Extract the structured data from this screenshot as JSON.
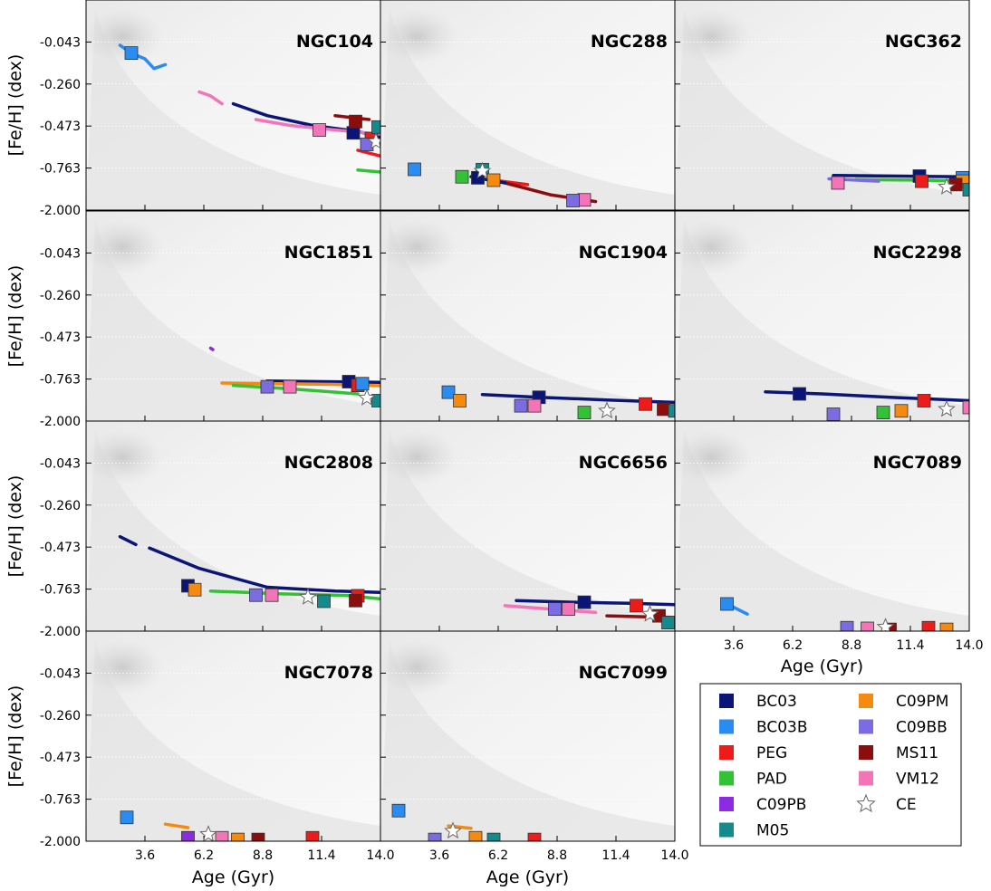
{
  "chart_data": {
    "type": "scatter",
    "description_kind": "small-multiples contour/marker panels of age vs metallicity",
    "xlabel": "Age (Gyr)",
    "ylabel": "[Fe/H] (dex)",
    "x_ticks": [
      "3.6",
      "6.2",
      "8.8",
      "11.4",
      "14.0"
    ],
    "y_ticks": [
      "-0.043",
      "-0.260",
      "-0.473",
      "-0.763",
      "-2.000"
    ],
    "xlim": [
      1.0,
      14.0
    ],
    "y_tick_values": [
      -0.043,
      -0.26,
      -0.473,
      -0.763,
      -2.0
    ],
    "grid": true,
    "legend_position": "lower-right",
    "series": [
      {
        "name": "BC03",
        "color": "#0b1577",
        "marker": "square"
      },
      {
        "name": "BC03B",
        "color": "#2a8bf0",
        "marker": "square"
      },
      {
        "name": "PEG",
        "color": "#ee1b1b",
        "marker": "square"
      },
      {
        "name": "PAD",
        "color": "#33c136",
        "marker": "square"
      },
      {
        "name": "C09PB",
        "color": "#8b2be2",
        "marker": "square"
      },
      {
        "name": "M05",
        "color": "#148a8c",
        "marker": "square"
      },
      {
        "name": "C09PM",
        "color": "#f58a10",
        "marker": "square"
      },
      {
        "name": "C09BB",
        "color": "#7b6ce2",
        "marker": "square"
      },
      {
        "name": "MS11",
        "color": "#8b0d0d",
        "marker": "square"
      },
      {
        "name": "VM12",
        "color": "#f474b8",
        "marker": "square"
      },
      {
        "name": "CE",
        "color": "#ffffff",
        "marker": "star"
      }
    ],
    "panels": [
      {
        "name": "NGC104",
        "points": [
          {
            "s": "BC03B",
            "x": 3.0,
            "y": -0.1
          },
          {
            "s": "BC03",
            "x": 12.8,
            "y": -0.52
          },
          {
            "s": "MS11",
            "x": 12.9,
            "y": -0.45
          },
          {
            "s": "VM12",
            "x": 11.3,
            "y": -0.5
          },
          {
            "s": "PEG",
            "x": 13.6,
            "y": -0.56
          },
          {
            "s": "C09BB",
            "x": 13.4,
            "y": -0.6
          },
          {
            "s": "M05",
            "x": 13.9,
            "y": -0.48
          },
          {
            "s": "CE",
            "x": 13.8,
            "y": -0.58
          }
        ],
        "tracks": [
          {
            "s": "BC03B",
            "x": [
              2.5,
              3.0,
              3.6,
              4.0,
              4.5
            ],
            "y": [
              -0.06,
              -0.1,
              -0.13,
              -0.18,
              -0.16
            ]
          },
          {
            "s": "VM12",
            "x": [
              6.0,
              6.5,
              7.0
            ],
            "y": [
              -0.3,
              -0.32,
              -0.36
            ]
          },
          {
            "s": "BC03",
            "x": [
              7.5,
              9.0,
              11.0,
              13.0,
              14.0
            ],
            "y": [
              -0.36,
              -0.42,
              -0.47,
              -0.51,
              -0.55
            ]
          },
          {
            "s": "VM12",
            "x": [
              8.5,
              10,
              12,
              14
            ],
            "y": [
              -0.44,
              -0.47,
              -0.5,
              -0.53
            ]
          },
          {
            "s": "PAD",
            "x": [
              13.0,
              14.0
            ],
            "y": [
              -0.82,
              -0.88
            ]
          },
          {
            "s": "PEG",
            "x": [
              13.0,
              14.0
            ],
            "y": [
              -0.64,
              -0.68
            ]
          },
          {
            "s": "MS11",
            "x": [
              12.0,
              13.5
            ],
            "y": [
              -0.42,
              -0.44
            ]
          }
        ]
      },
      {
        "name": "NGC288",
        "points": [
          {
            "s": "BC03B",
            "x": 2.5,
            "y": -0.8
          },
          {
            "s": "M05",
            "x": 5.5,
            "y": -0.81
          },
          {
            "s": "PAD",
            "x": 4.6,
            "y": -1.02
          },
          {
            "s": "BC03",
            "x": 5.3,
            "y": -1.05
          },
          {
            "s": "C09PM",
            "x": 6.0,
            "y": -1.12
          },
          {
            "s": "VM12",
            "x": 10.0,
            "y": -1.7
          },
          {
            "s": "C09BB",
            "x": 9.5,
            "y": -1.72
          },
          {
            "s": "CE",
            "x": 5.5,
            "y": -0.85
          }
        ],
        "tracks": [
          {
            "s": "PEG",
            "x": [
              6.0,
              7.5
            ],
            "y": [
              -1.12,
              -1.25
            ]
          },
          {
            "s": "MS11",
            "x": [
              6.5,
              8.5,
              10.5
            ],
            "y": [
              -1.2,
              -1.55,
              -1.75
            ]
          },
          {
            "s": "BC03",
            "x": [
              5.0,
              6.5
            ],
            "y": [
              -1.02,
              -1.2
            ]
          }
        ]
      },
      {
        "name": "NGC362",
        "points": [
          {
            "s": "BC03",
            "x": 11.8,
            "y": -1.0
          },
          {
            "s": "BC03B",
            "x": 13.7,
            "y": -1.05
          },
          {
            "s": "PEG",
            "x": 11.9,
            "y": -1.15
          },
          {
            "s": "C09PM",
            "x": 13.7,
            "y": -1.15
          },
          {
            "s": "VM12",
            "x": 8.2,
            "y": -1.2
          },
          {
            "s": "MS11",
            "x": 13.4,
            "y": -1.25
          },
          {
            "s": "M05",
            "x": 14.0,
            "y": -1.4
          },
          {
            "s": "CE",
            "x": 13.0,
            "y": -1.32
          }
        ],
        "tracks": [
          {
            "s": "BC03",
            "x": [
              8.0,
              11.0,
              14.0
            ],
            "y": [
              -0.98,
              -1.0,
              -1.02
            ]
          },
          {
            "s": "PAD",
            "x": [
              9.0,
              12.0,
              14.0
            ],
            "y": [
              -1.1,
              -1.12,
              -1.15
            ]
          },
          {
            "s": "C09BB",
            "x": [
              7.8,
              10.0
            ],
            "y": [
              -1.08,
              -1.15
            ]
          }
        ]
      },
      {
        "name": "NGC1851",
        "points": [
          {
            "s": "BC03",
            "x": 12.6,
            "y": -0.84
          },
          {
            "s": "PEG",
            "x": 13.0,
            "y": -0.95
          },
          {
            "s": "BC03B",
            "x": 13.2,
            "y": -0.9
          },
          {
            "s": "C09BB",
            "x": 9.0,
            "y": -0.99
          },
          {
            "s": "VM12",
            "x": 10.0,
            "y": -0.99
          },
          {
            "s": "M05",
            "x": 13.9,
            "y": -1.4
          },
          {
            "s": "CE",
            "x": 13.4,
            "y": -1.32
          }
        ],
        "tracks": [
          {
            "s": "C09PB",
            "x": [
              6.5,
              6.6
            ],
            "y": [
              -0.55,
              -0.56
            ]
          },
          {
            "s": "BC03",
            "x": [
              9.0,
              11.5,
              14.0
            ],
            "y": [
              -0.82,
              -0.84,
              -0.86
            ]
          },
          {
            "s": "C09PM",
            "x": [
              7.0,
              9.5,
              12.0,
              14.0
            ],
            "y": [
              -0.88,
              -0.9,
              -0.92,
              -0.96
            ]
          },
          {
            "s": "PAD",
            "x": [
              7.5,
              10.0,
              13.0
            ],
            "y": [
              -0.95,
              -1.05,
              -1.2
            ]
          }
        ]
      },
      {
        "name": "NGC1904",
        "points": [
          {
            "s": "BC03B",
            "x": 4.0,
            "y": -1.15
          },
          {
            "s": "C09PM",
            "x": 4.5,
            "y": -1.4
          },
          {
            "s": "BC03",
            "x": 8.0,
            "y": -1.3
          },
          {
            "s": "C09BB",
            "x": 7.2,
            "y": -1.55
          },
          {
            "s": "VM12",
            "x": 7.8,
            "y": -1.55
          },
          {
            "s": "PAD",
            "x": 10.0,
            "y": -1.75
          },
          {
            "s": "PEG",
            "x": 12.7,
            "y": -1.5
          },
          {
            "s": "MS11",
            "x": 13.5,
            "y": -1.65
          },
          {
            "s": "M05",
            "x": 14.0,
            "y": -1.7
          },
          {
            "s": "CE",
            "x": 11.0,
            "y": -1.7
          }
        ],
        "tracks": [
          {
            "s": "BC03",
            "x": [
              5.5,
              8.0,
              11.0,
              14.0
            ],
            "y": [
              -1.22,
              -1.3,
              -1.38,
              -1.45
            ]
          }
        ]
      },
      {
        "name": "NGC2298",
        "points": [
          {
            "s": "BC03",
            "x": 6.5,
            "y": -1.2
          },
          {
            "s": "PEG",
            "x": 12.0,
            "y": -1.4
          },
          {
            "s": "C09BB",
            "x": 8.0,
            "y": -1.8
          },
          {
            "s": "PAD",
            "x": 10.2,
            "y": -1.75
          },
          {
            "s": "C09PM",
            "x": 11.0,
            "y": -1.7
          },
          {
            "s": "VM12",
            "x": 14.0,
            "y": -1.6
          },
          {
            "s": "CE",
            "x": 13.0,
            "y": -1.65
          }
        ],
        "tracks": [
          {
            "s": "BC03",
            "x": [
              5.0,
              7.5,
              10.5,
              14.0
            ],
            "y": [
              -1.14,
              -1.2,
              -1.3,
              -1.4
            ]
          }
        ]
      },
      {
        "name": "NGC2808",
        "points": [
          {
            "s": "BC03",
            "x": 5.5,
            "y": -0.74
          },
          {
            "s": "C09PM",
            "x": 5.8,
            "y": -0.78
          },
          {
            "s": "C09BB",
            "x": 8.5,
            "y": -0.94
          },
          {
            "s": "VM12",
            "x": 9.2,
            "y": -0.94
          },
          {
            "s": "PEG",
            "x": 13.0,
            "y": -0.96
          },
          {
            "s": "M05",
            "x": 11.5,
            "y": -1.12
          },
          {
            "s": "MS11",
            "x": 12.9,
            "y": -1.1
          },
          {
            "s": "CE",
            "x": 10.8,
            "y": -1.0
          }
        ],
        "tracks": [
          {
            "s": "BC03",
            "x": [
              2.5,
              3.2
            ],
            "y": [
              -0.42,
              -0.46
            ]
          },
          {
            "s": "BC03",
            "x": [
              3.8,
              6.0,
              9.0,
              12.0,
              14.0
            ],
            "y": [
              -0.48,
              -0.62,
              -0.75,
              -0.82,
              -0.86
            ]
          },
          {
            "s": "PAD",
            "x": [
              6.5,
              9.5,
              12.5,
              14.0
            ],
            "y": [
              -0.82,
              -0.9,
              -0.95,
              -1.05
            ]
          }
        ]
      },
      {
        "name": "NGC6656",
        "points": [
          {
            "s": "BC03",
            "x": 10.0,
            "y": -1.15
          },
          {
            "s": "PEG",
            "x": 12.3,
            "y": -1.25
          },
          {
            "s": "C09BB",
            "x": 8.7,
            "y": -1.35
          },
          {
            "s": "VM12",
            "x": 9.3,
            "y": -1.35
          },
          {
            "s": "MS11",
            "x": 13.3,
            "y": -1.55
          },
          {
            "s": "M05",
            "x": 13.7,
            "y": -1.75
          },
          {
            "s": "CE",
            "x": 12.9,
            "y": -1.5
          }
        ],
        "tracks": [
          {
            "s": "BC03",
            "x": [
              7.0,
              9.5,
              12.0,
              14.0
            ],
            "y": [
              -1.1,
              -1.15,
              -1.18,
              -1.22
            ]
          },
          {
            "s": "VM12",
            "x": [
              6.5,
              8.5,
              10.5
            ],
            "y": [
              -1.25,
              -1.35,
              -1.45
            ]
          },
          {
            "s": "MS11",
            "x": [
              11.0,
              14.0
            ],
            "y": [
              -1.55,
              -1.6
            ]
          }
        ]
      },
      {
        "name": "NGC7089",
        "points": [
          {
            "s": "BC03B",
            "x": 3.3,
            "y": -1.2
          },
          {
            "s": "C09BB",
            "x": 8.6,
            "y": -1.9
          },
          {
            "s": "VM12",
            "x": 9.5,
            "y": -1.92
          },
          {
            "s": "PEG",
            "x": 12.2,
            "y": -1.9
          },
          {
            "s": "C09PM",
            "x": 13.0,
            "y": -1.95
          },
          {
            "s": "MS11",
            "x": 10.5,
            "y": -1.95
          },
          {
            "s": "CE",
            "x": 10.3,
            "y": -1.88
          }
        ],
        "tracks": [
          {
            "s": "BC03B",
            "x": [
              3.3,
              4.2
            ],
            "y": [
              -1.2,
              -1.5
            ]
          }
        ]
      },
      {
        "name": "NGC7078",
        "points": [
          {
            "s": "BC03B",
            "x": 2.8,
            "y": -1.3
          },
          {
            "s": "C09PB",
            "x": 5.5,
            "y": -1.9
          },
          {
            "s": "VM12",
            "x": 7.0,
            "y": -1.9
          },
          {
            "s": "C09PM",
            "x": 7.7,
            "y": -1.95
          },
          {
            "s": "PEG",
            "x": 11.0,
            "y": -1.9
          },
          {
            "s": "MS11",
            "x": 8.6,
            "y": -1.95
          },
          {
            "s": "CE",
            "x": 6.4,
            "y": -1.8
          }
        ],
        "tracks": [
          {
            "s": "C09PM",
            "x": [
              4.5,
              5.5
            ],
            "y": [
              -1.5,
              -1.6
            ]
          }
        ]
      },
      {
        "name": "NGC7099",
        "points": [
          {
            "s": "BC03B",
            "x": 1.8,
            "y": -1.1
          },
          {
            "s": "C09BB",
            "x": 3.4,
            "y": -1.95
          },
          {
            "s": "C09PM",
            "x": 5.2,
            "y": -1.9
          },
          {
            "s": "M05",
            "x": 6.0,
            "y": -1.95
          },
          {
            "s": "PEG",
            "x": 7.8,
            "y": -1.95
          },
          {
            "s": "CE",
            "x": 4.2,
            "y": -1.7
          }
        ],
        "tracks": [
          {
            "s": "C09PM",
            "x": [
              4.0,
              5.0
            ],
            "y": [
              -1.55,
              -1.62
            ]
          }
        ]
      }
    ]
  }
}
